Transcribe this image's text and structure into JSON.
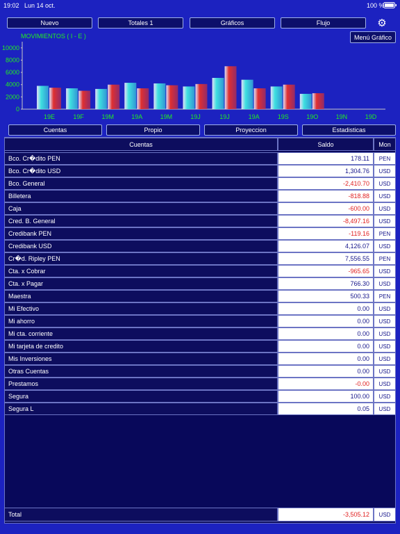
{
  "status": {
    "time": "19:02",
    "date": "Lun 14 oct.",
    "battery": "100 %"
  },
  "toolbar": [
    "Nuevo",
    "Totales 1",
    "Gráficos",
    "Flujo"
  ],
  "chart_button": "Menú Gráfico",
  "chart_data": {
    "type": "bar",
    "title": "MOVIMIENTOS ( I - E )",
    "categories": [
      "19E",
      "19F",
      "19M",
      "19A",
      "19M",
      "19J",
      "19J",
      "19A",
      "19S",
      "19O",
      "19N",
      "19D"
    ],
    "series": [
      {
        "color": "#3fe0e0",
        "values": [
          3800,
          3400,
          3300,
          4300,
          4200,
          3700,
          5100,
          4800,
          3700,
          2500,
          0,
          0
        ]
      },
      {
        "color": "#e03030",
        "values": [
          3500,
          3000,
          4000,
          3400,
          3900,
          4100,
          7000,
          3400,
          4000,
          2600,
          0,
          0
        ]
      }
    ],
    "ylim": [
      0,
      11000
    ],
    "yticks": [
      0,
      2000,
      4000,
      6000,
      8000,
      10000
    ]
  },
  "tabs": [
    "Cuentas",
    "Propio",
    "Proyeccion",
    "Estadisticas"
  ],
  "table": {
    "header": [
      "Cuentas",
      "Saldo",
      "Mon"
    ],
    "rows": [
      [
        "Bco. Cr�dito PEN",
        "178.11",
        "PEN"
      ],
      [
        "Bco. Cr�dito USD",
        "1,304.76",
        "USD"
      ],
      [
        "Bco. General",
        "-2,410.70",
        "USD"
      ],
      [
        "Billetera",
        "-818.88",
        "USD"
      ],
      [
        "Caja",
        "-600.00",
        "USD"
      ],
      [
        "Cred. B. General",
        "-8,497.16",
        "USD"
      ],
      [
        "Credibank PEN",
        "-119.16",
        "PEN"
      ],
      [
        "Credibank USD",
        "4,126.07",
        "USD"
      ],
      [
        "Cr�d. Ripley PEN",
        "7,556.55",
        "PEN"
      ],
      [
        "Cta. x Cobrar",
        "-965.65",
        "USD"
      ],
      [
        "Cta. x Pagar",
        "766.30",
        "USD"
      ],
      [
        "Maestra",
        "500.33",
        "PEN"
      ],
      [
        "Mi Efectivo",
        "0.00",
        "USD"
      ],
      [
        "Mi ahorro",
        "0.00",
        "USD"
      ],
      [
        "Mi cta. corriente",
        "0.00",
        "USD"
      ],
      [
        "Mi tarjeta de credito",
        "0.00",
        "USD"
      ],
      [
        "Mis Inversiones",
        "0.00",
        "USD"
      ],
      [
        "Otras Cuentas",
        "0.00",
        "USD"
      ],
      [
        "Prestamos",
        "-0.00",
        "USD"
      ],
      [
        "Segura",
        "100.00",
        "USD"
      ],
      [
        "Segura L",
        "0.05",
        "USD"
      ]
    ],
    "total": [
      "Total",
      "-3,505.12",
      "USD"
    ]
  }
}
